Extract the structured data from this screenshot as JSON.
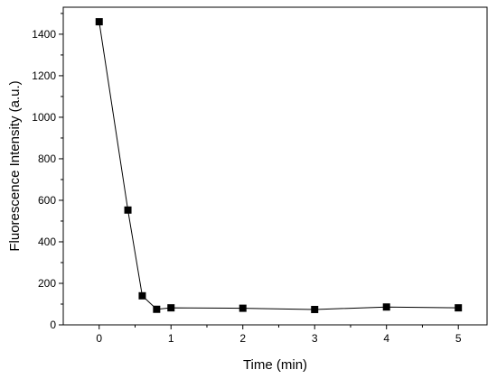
{
  "chart_data": {
    "type": "line",
    "title": "",
    "xlabel": "Time (min)",
    "ylabel": "Fluorescence Intensity (a.u.)",
    "xlim": [
      -0.5,
      5.4
    ],
    "ylim": [
      0,
      1530
    ],
    "xticks": [
      0,
      1,
      2,
      3,
      4,
      5
    ],
    "yticks": [
      0,
      200,
      400,
      600,
      800,
      1000,
      1200,
      1400
    ],
    "grid": false,
    "legend": "none",
    "series": [
      {
        "color": "#000000",
        "marker": "square",
        "x": [
          0,
          0.4,
          0.6,
          0.8,
          1,
          2,
          3,
          4,
          5
        ],
        "y": [
          1460,
          553,
          140,
          75,
          82,
          80,
          74,
          86,
          82
        ]
      }
    ]
  }
}
